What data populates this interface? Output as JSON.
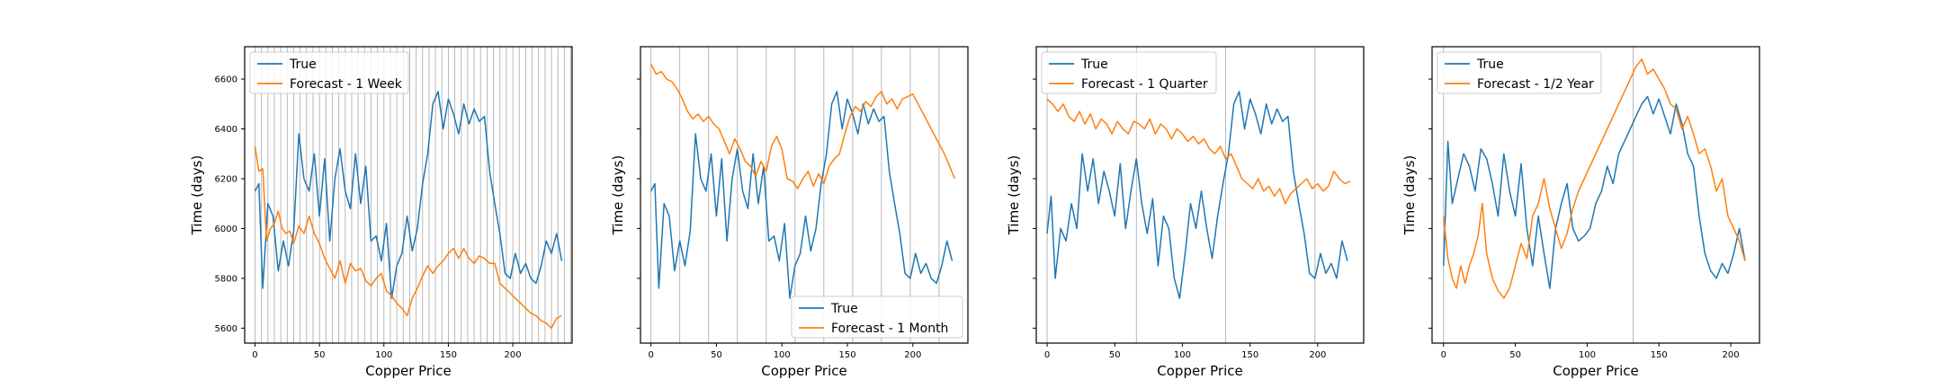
{
  "chart_data": [
    {
      "type": "line",
      "xlabel": "Copper Price",
      "ylabel": "Time (days)",
      "xlim": [
        -8,
        246
      ],
      "ylim": [
        5540,
        6730
      ],
      "xticks": [
        0,
        50,
        100,
        150,
        200
      ],
      "yticks": [
        5600,
        5800,
        6000,
        6200,
        6400,
        6600
      ],
      "show_yticklabels": true,
      "vline_step": 5,
      "legend": "upper-left",
      "series": [
        {
          "name": "True",
          "color": "#1f77b4",
          "x": [
            0,
            3,
            6,
            10,
            14,
            18,
            22,
            26,
            30,
            34,
            38,
            42,
            46,
            50,
            54,
            58,
            62,
            66,
            70,
            74,
            78,
            82,
            86,
            90,
            94,
            98,
            102,
            106,
            110,
            114,
            118,
            122,
            126,
            130,
            134,
            138,
            142,
            146,
            150,
            154,
            158,
            162,
            166,
            170,
            174,
            178,
            182,
            186,
            190,
            194,
            198,
            202,
            206,
            210,
            214,
            218,
            222,
            226,
            230,
            234,
            238
          ],
          "values": [
            6150,
            6180,
            5760,
            6100,
            6050,
            5830,
            5950,
            5850,
            5990,
            6380,
            6200,
            6150,
            6300,
            6050,
            6280,
            5950,
            6200,
            6320,
            6150,
            6080,
            6300,
            6100,
            6250,
            5950,
            5970,
            5870,
            6020,
            5720,
            5850,
            5900,
            6050,
            5910,
            6000,
            6180,
            6300,
            6500,
            6550,
            6400,
            6520,
            6460,
            6380,
            6500,
            6420,
            6480,
            6430,
            6450,
            6230,
            6100,
            5980,
            5820,
            5800,
            5900,
            5820,
            5860,
            5800,
            5780,
            5850,
            5950,
            5900,
            5980,
            5870
          ]
        },
        {
          "name": "Forecast - 1 Week",
          "color": "#ff7f0e",
          "x": [
            0,
            3,
            6,
            9,
            12,
            15,
            18,
            21,
            24,
            27,
            30,
            34,
            38,
            42,
            46,
            50,
            54,
            58,
            62,
            66,
            70,
            74,
            78,
            82,
            86,
            90,
            94,
            98,
            102,
            106,
            110,
            114,
            118,
            122,
            126,
            130,
            134,
            138,
            142,
            146,
            150,
            154,
            158,
            162,
            166,
            170,
            174,
            178,
            182,
            186,
            190,
            194,
            198,
            202,
            206,
            210,
            214,
            218,
            222,
            226,
            230,
            234,
            238
          ],
          "values": [
            6330,
            6230,
            6240,
            5950,
            6000,
            6020,
            6070,
            6000,
            5980,
            5990,
            5940,
            6010,
            5980,
            6050,
            5980,
            5940,
            5880,
            5840,
            5800,
            5870,
            5780,
            5860,
            5830,
            5840,
            5790,
            5770,
            5800,
            5820,
            5750,
            5730,
            5700,
            5680,
            5650,
            5720,
            5760,
            5810,
            5850,
            5820,
            5850,
            5870,
            5900,
            5920,
            5880,
            5920,
            5880,
            5860,
            5890,
            5880,
            5860,
            5860,
            5780,
            5760,
            5740,
            5720,
            5700,
            5680,
            5660,
            5650,
            5630,
            5620,
            5600,
            5640,
            5650
          ]
        }
      ]
    },
    {
      "type": "line",
      "xlabel": "Copper Price",
      "ylabel": "Time (days)",
      "xlim": [
        -8,
        242
      ],
      "ylim": [
        5540,
        6730
      ],
      "xticks": [
        0,
        50,
        100,
        150,
        200
      ],
      "yticks": [
        5600,
        5800,
        6000,
        6200,
        6400,
        6600
      ],
      "show_yticklabels": false,
      "vline_step": 22,
      "legend": "lower-right",
      "series": [
        {
          "name": "True",
          "color": "#1f77b4",
          "x": [
            0,
            3,
            6,
            10,
            14,
            18,
            22,
            26,
            30,
            34,
            38,
            42,
            46,
            50,
            54,
            58,
            62,
            66,
            70,
            74,
            78,
            82,
            86,
            90,
            94,
            98,
            102,
            106,
            110,
            114,
            118,
            122,
            126,
            130,
            134,
            138,
            142,
            146,
            150,
            154,
            158,
            162,
            166,
            170,
            174,
            178,
            182,
            186,
            190,
            194,
            198,
            202,
            206,
            210,
            214,
            218,
            222,
            226,
            230
          ],
          "values": [
            6150,
            6180,
            5760,
            6100,
            6050,
            5830,
            5950,
            5850,
            5990,
            6380,
            6200,
            6150,
            6300,
            6050,
            6280,
            5950,
            6200,
            6320,
            6150,
            6080,
            6300,
            6100,
            6250,
            5950,
            5970,
            5870,
            6020,
            5720,
            5850,
            5900,
            6050,
            5910,
            6000,
            6180,
            6300,
            6500,
            6550,
            6400,
            6520,
            6460,
            6380,
            6500,
            6420,
            6480,
            6430,
            6450,
            6230,
            6100,
            5980,
            5820,
            5800,
            5900,
            5820,
            5860,
            5800,
            5780,
            5850,
            5950,
            5870
          ]
        },
        {
          "name": "Forecast - 1 Month",
          "color": "#ff7f0e",
          "x": [
            0,
            4,
            8,
            12,
            16,
            20,
            24,
            28,
            32,
            36,
            40,
            44,
            48,
            52,
            56,
            60,
            64,
            68,
            72,
            76,
            80,
            84,
            88,
            92,
            96,
            100,
            104,
            108,
            112,
            116,
            120,
            124,
            128,
            132,
            136,
            140,
            144,
            148,
            152,
            156,
            160,
            164,
            168,
            172,
            176,
            180,
            184,
            188,
            192,
            196,
            200,
            204,
            208,
            212,
            216,
            220,
            224,
            228,
            232
          ],
          "values": [
            6660,
            6620,
            6630,
            6600,
            6590,
            6560,
            6520,
            6470,
            6440,
            6460,
            6430,
            6450,
            6420,
            6400,
            6350,
            6300,
            6360,
            6320,
            6270,
            6250,
            6210,
            6270,
            6230,
            6330,
            6370,
            6320,
            6200,
            6190,
            6160,
            6200,
            6230,
            6170,
            6220,
            6180,
            6250,
            6280,
            6300,
            6380,
            6450,
            6490,
            6470,
            6510,
            6490,
            6530,
            6550,
            6500,
            6520,
            6480,
            6520,
            6530,
            6540,
            6500,
            6460,
            6420,
            6380,
            6340,
            6300,
            6250,
            6200
          ]
        }
      ]
    },
    {
      "type": "line",
      "xlabel": "Copper Price",
      "ylabel": "Time (days)",
      "xlim": [
        -8,
        234
      ],
      "ylim": [
        5540,
        6730
      ],
      "xticks": [
        0,
        50,
        100,
        150,
        200
      ],
      "yticks": [
        5600,
        5800,
        6000,
        6200,
        6400,
        6600
      ],
      "show_yticklabels": false,
      "vline_step": 66,
      "legend": "upper-left",
      "series": [
        {
          "name": "True",
          "color": "#1f77b4",
          "x": [
            0,
            3,
            6,
            10,
            14,
            18,
            22,
            26,
            30,
            34,
            38,
            42,
            46,
            50,
            54,
            58,
            62,
            66,
            70,
            74,
            78,
            82,
            86,
            90,
            94,
            98,
            102,
            106,
            110,
            114,
            118,
            122,
            126,
            130,
            134,
            138,
            142,
            146,
            150,
            154,
            158,
            162,
            166,
            170,
            174,
            178,
            182,
            186,
            190,
            194,
            198,
            202,
            206,
            210,
            214,
            218,
            222
          ],
          "values": [
            5980,
            6130,
            5800,
            6000,
            5950,
            6100,
            6000,
            6300,
            6150,
            6280,
            6100,
            6230,
            6150,
            6050,
            6260,
            6000,
            6150,
            6280,
            6100,
            5980,
            6120,
            5850,
            6050,
            6000,
            5800,
            5720,
            5900,
            6100,
            6000,
            6150,
            6000,
            5880,
            6050,
            6180,
            6300,
            6500,
            6550,
            6400,
            6520,
            6460,
            6380,
            6500,
            6420,
            6480,
            6430,
            6450,
            6230,
            6100,
            5980,
            5820,
            5800,
            5900,
            5820,
            5860,
            5800,
            5950,
            5870
          ]
        },
        {
          "name": "Forecast - 1 Quarter",
          "color": "#ff7f0e",
          "x": [
            0,
            4,
            8,
            12,
            16,
            20,
            24,
            28,
            32,
            36,
            40,
            44,
            48,
            52,
            56,
            60,
            64,
            68,
            72,
            76,
            80,
            84,
            88,
            92,
            96,
            100,
            104,
            108,
            112,
            116,
            120,
            124,
            128,
            132,
            136,
            140,
            144,
            148,
            152,
            156,
            160,
            164,
            168,
            172,
            176,
            180,
            184,
            188,
            192,
            196,
            200,
            204,
            208,
            212,
            216,
            220,
            224
          ],
          "values": [
            6520,
            6500,
            6470,
            6500,
            6450,
            6430,
            6470,
            6420,
            6460,
            6400,
            6440,
            6420,
            6380,
            6430,
            6400,
            6380,
            6430,
            6420,
            6400,
            6440,
            6380,
            6420,
            6400,
            6360,
            6400,
            6380,
            6350,
            6370,
            6340,
            6360,
            6320,
            6300,
            6330,
            6280,
            6300,
            6250,
            6200,
            6180,
            6160,
            6200,
            6150,
            6170,
            6130,
            6160,
            6100,
            6140,
            6160,
            6180,
            6200,
            6160,
            6180,
            6150,
            6170,
            6230,
            6200,
            6180,
            6190
          ]
        }
      ]
    },
    {
      "type": "line",
      "xlabel": "Copper Price",
      "ylabel": "Time (days)",
      "xlim": [
        -8,
        220
      ],
      "ylim": [
        5540,
        6730
      ],
      "xticks": [
        0,
        50,
        100,
        150,
        200
      ],
      "yticks": [
        5600,
        5800,
        6000,
        6200,
        6400,
        6600
      ],
      "show_yticklabels": false,
      "vline_step": 132,
      "legend": "upper-left",
      "series": [
        {
          "name": "True",
          "color": "#1f77b4",
          "x": [
            0,
            3,
            6,
            10,
            14,
            18,
            22,
            26,
            30,
            34,
            38,
            42,
            46,
            50,
            54,
            58,
            62,
            66,
            70,
            74,
            78,
            82,
            86,
            90,
            94,
            98,
            102,
            106,
            110,
            114,
            118,
            122,
            126,
            130,
            134,
            138,
            142,
            146,
            150,
            154,
            158,
            162,
            166,
            170,
            174,
            178,
            182,
            186,
            190,
            194,
            198,
            202,
            206,
            210
          ],
          "values": [
            5850,
            6350,
            6100,
            6200,
            6300,
            6250,
            6150,
            6320,
            6280,
            6180,
            6050,
            6300,
            6150,
            6050,
            6260,
            6000,
            5850,
            6050,
            5900,
            5760,
            6000,
            6100,
            6180,
            6000,
            5950,
            5970,
            6000,
            6100,
            6150,
            6250,
            6180,
            6300,
            6350,
            6400,
            6450,
            6500,
            6530,
            6460,
            6520,
            6450,
            6380,
            6500,
            6420,
            6300,
            6250,
            6050,
            5900,
            5830,
            5800,
            5860,
            5820,
            5900,
            6000,
            5870
          ]
        },
        {
          "name": "Forecast - 1/2 Year",
          "color": "#ff7f0e",
          "x": [
            0,
            3,
            6,
            9,
            12,
            15,
            18,
            21,
            24,
            27,
            30,
            34,
            38,
            42,
            46,
            50,
            54,
            58,
            62,
            66,
            70,
            74,
            78,
            82,
            86,
            90,
            94,
            98,
            102,
            106,
            110,
            114,
            118,
            122,
            126,
            130,
            134,
            138,
            142,
            146,
            150,
            154,
            158,
            162,
            166,
            170,
            174,
            178,
            182,
            186,
            190,
            194,
            198,
            202,
            206,
            210
          ],
          "values": [
            6050,
            5880,
            5800,
            5760,
            5850,
            5780,
            5850,
            5900,
            5970,
            6100,
            5900,
            5800,
            5750,
            5720,
            5760,
            5850,
            5940,
            5880,
            6050,
            6100,
            6200,
            6080,
            6000,
            5920,
            5980,
            6080,
            6150,
            6200,
            6250,
            6300,
            6350,
            6400,
            6450,
            6500,
            6550,
            6600,
            6650,
            6680,
            6620,
            6640,
            6600,
            6560,
            6500,
            6480,
            6400,
            6450,
            6380,
            6300,
            6320,
            6250,
            6150,
            6200,
            6050,
            6000,
            5950,
            5870
          ]
        }
      ]
    }
  ]
}
